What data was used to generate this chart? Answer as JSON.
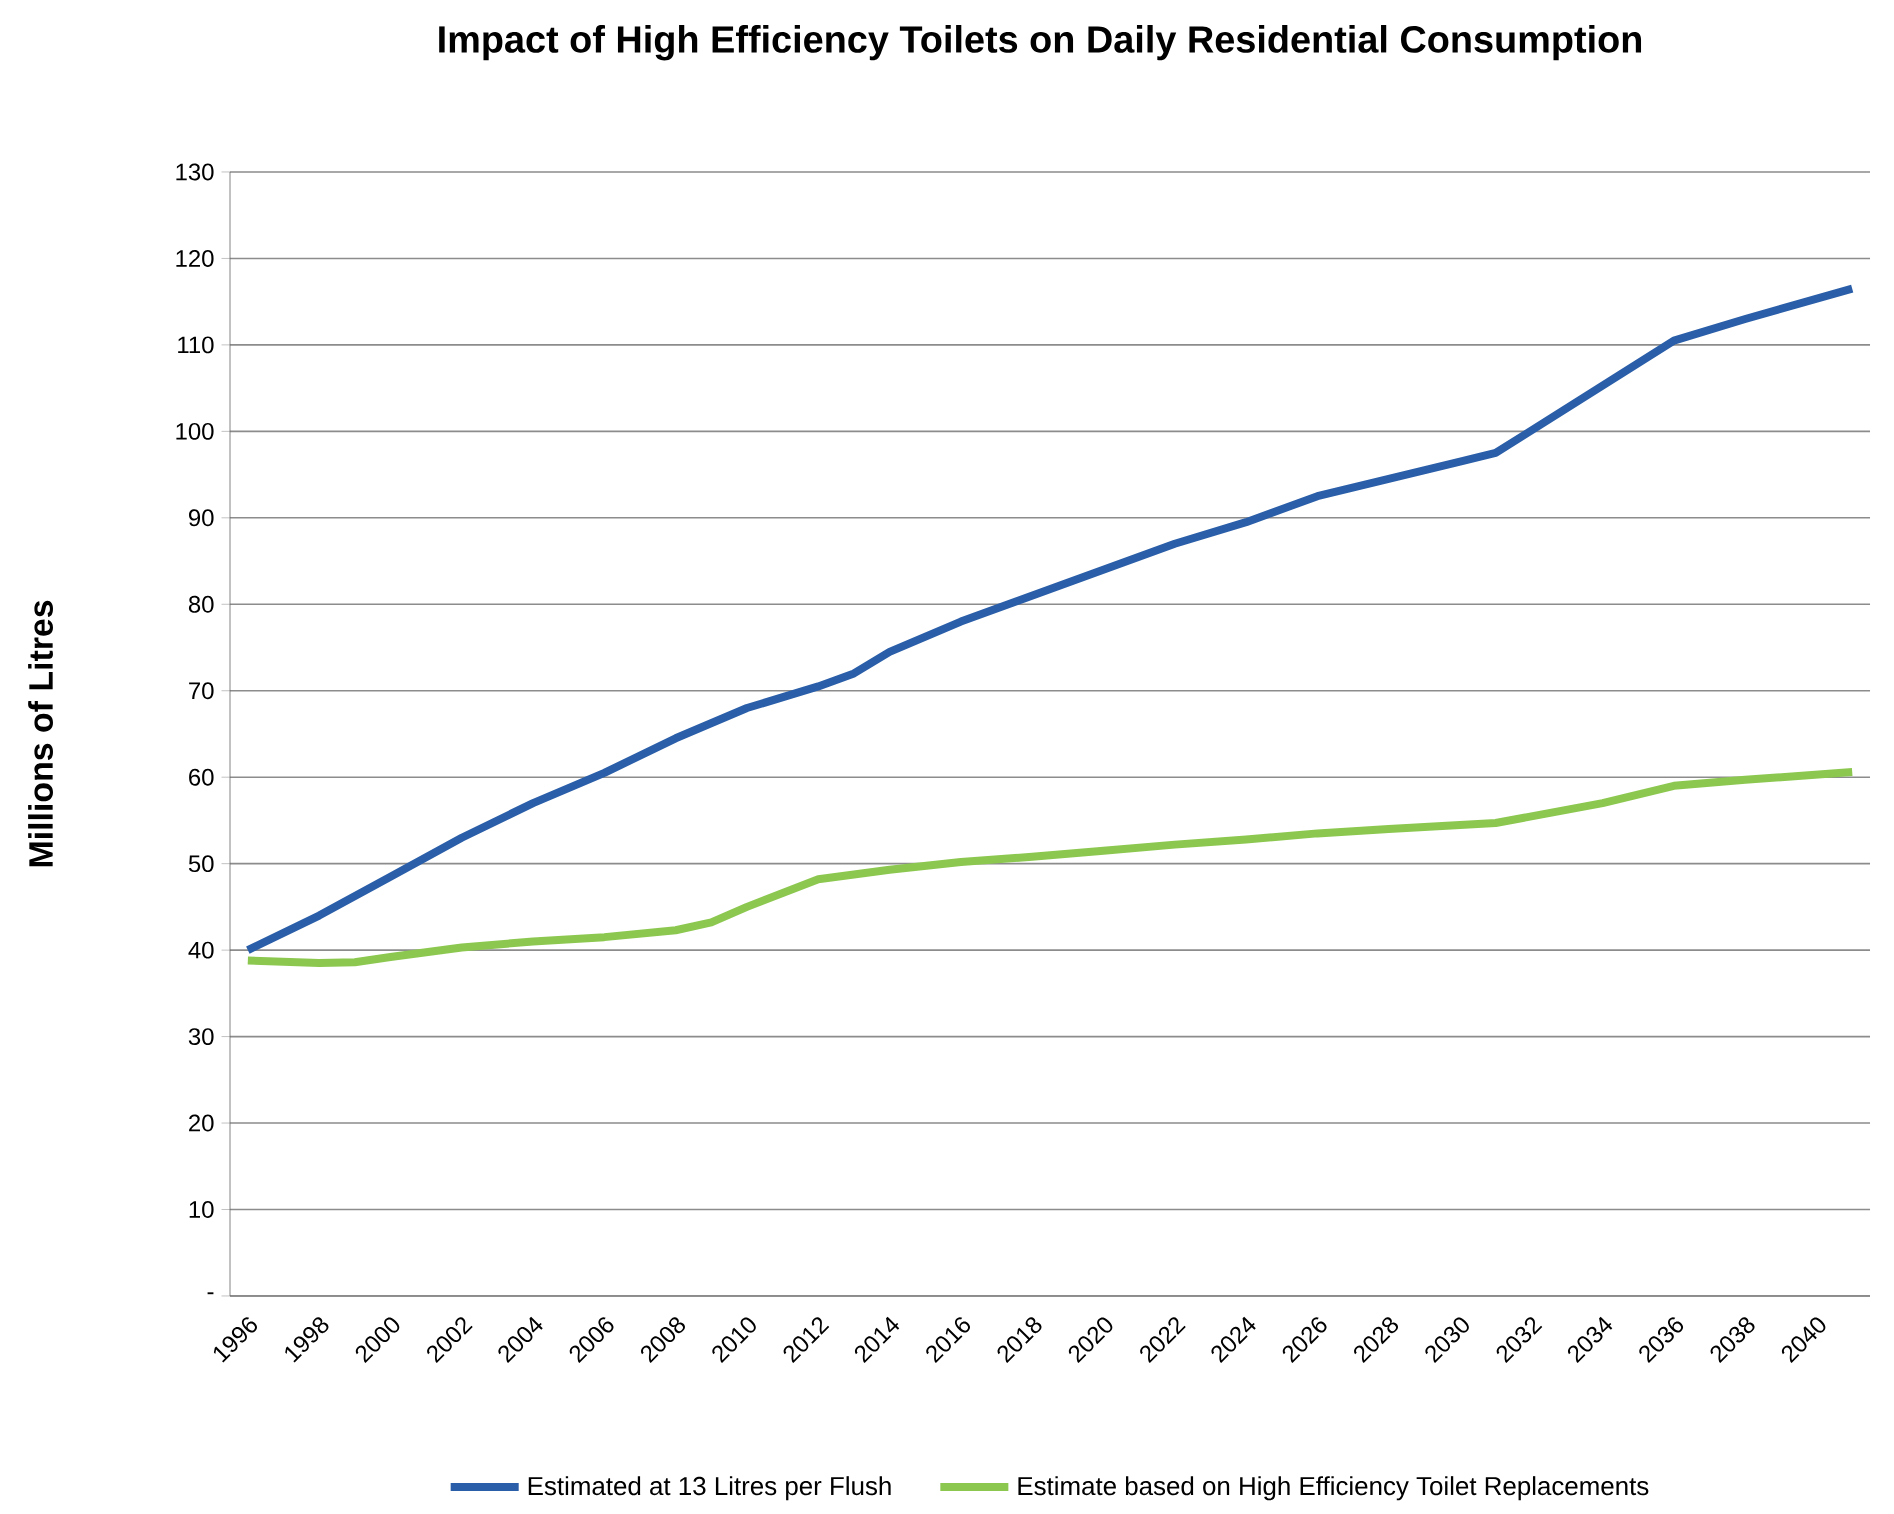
{
  "chart_data": {
    "type": "line",
    "title": "Impact of High Efficiency Toilets on Daily Residential Consumption",
    "ylabel": "Millions of Litres",
    "xlim": [
      1995.5,
      2041.5
    ],
    "xticks": [
      1996,
      1998,
      2000,
      2002,
      2004,
      2006,
      2008,
      2010,
      2012,
      2014,
      2016,
      2018,
      2020,
      2022,
      2024,
      2026,
      2028,
      2030,
      2032,
      2034,
      2036,
      2038,
      2040
    ],
    "ylim": [
      0,
      130
    ],
    "yticks": [
      {
        "value": 0,
        "label": "-"
      },
      10,
      20,
      30,
      40,
      50,
      60,
      70,
      80,
      90,
      100,
      110,
      120,
      130
    ],
    "grid": "y",
    "legend": "bottom",
    "marker": "none",
    "series": [
      {
        "name": "Estimated at 13 Litres per Flush",
        "color": "#2a5ea8",
        "x": [
          1996,
          1998,
          2000,
          2002,
          2004,
          2006,
          2008,
          2010,
          2012,
          2013,
          2014,
          2016,
          2018,
          2020,
          2022,
          2024,
          2026,
          2028,
          2030,
          2031,
          2036,
          2038,
          2041
        ],
        "values": [
          40,
          44,
          48.5,
          53,
          57,
          60.5,
          64.5,
          68,
          70.5,
          72,
          74.5,
          78,
          81,
          84,
          87,
          89.5,
          92.5,
          94.5,
          96.5,
          97.5,
          110.5,
          113,
          116.5
        ]
      },
      {
        "name": "Estimate based on High Efficiency Toilet Replacements",
        "color": "#8cc850",
        "x": [
          1996,
          1998,
          1999,
          2000,
          2002,
          2004,
          2006,
          2008,
          2009,
          2010,
          2012,
          2014,
          2016,
          2018,
          2020,
          2022,
          2024,
          2026,
          2028,
          2031,
          2034,
          2036,
          2038,
          2041
        ],
        "values": [
          38.8,
          38.5,
          38.6,
          39.2,
          40.3,
          41,
          41.5,
          42.3,
          43.2,
          45,
          48.2,
          49.3,
          50.2,
          50.8,
          51.5,
          52.2,
          52.8,
          53.5,
          54,
          54.7,
          57,
          59,
          59.7,
          60.6
        ]
      }
    ]
  }
}
